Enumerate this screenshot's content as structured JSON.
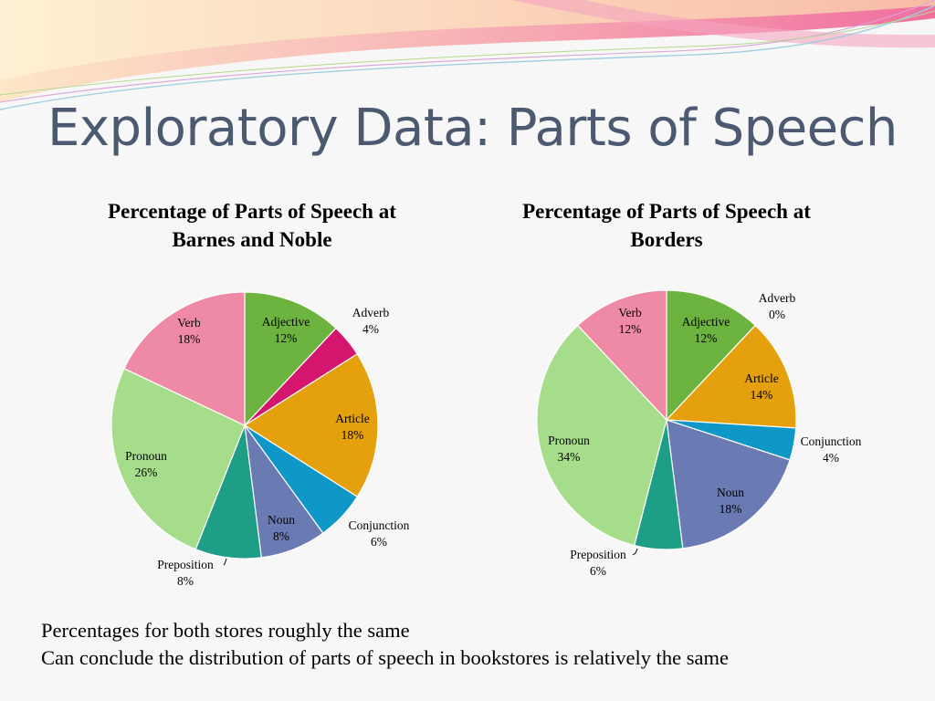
{
  "slide": {
    "title": "Exploratory Data: Parts of Speech",
    "notes": [
      "Percentages for both stores roughly the same",
      "Can conclude the distribution of parts of speech in bookstores is relatively the same"
    ]
  },
  "colors": {
    "Adjective": "#6db33f",
    "Adverb": "#d4166e",
    "Article": "#e5a00d",
    "Conjunction": "#0f97c8",
    "Noun": "#6a7ab3",
    "Preposition": "#1e9e86",
    "Pronoun": "#a6dd8a",
    "Verb": "#ee8aa6"
  },
  "chart_data": [
    {
      "type": "pie",
      "title_lines": [
        "Percentage of Parts of Speech at",
        "Barnes and Noble"
      ],
      "categories": [
        "Adjective",
        "Adverb",
        "Article",
        "Conjunction",
        "Noun",
        "Preposition",
        "Pronoun",
        "Verb"
      ],
      "values": [
        12,
        4,
        18,
        6,
        8,
        8,
        26,
        18
      ],
      "labels": [
        "12%",
        "4%",
        "18%",
        "6%",
        "8%",
        "8%",
        "26%",
        "18%"
      ],
      "legend": "none"
    },
    {
      "type": "pie",
      "title_lines": [
        "Percentage of Parts of Speech at",
        "Borders"
      ],
      "categories": [
        "Adjective",
        "Adverb",
        "Article",
        "Conjunction",
        "Noun",
        "Preposition",
        "Pronoun",
        "Verb"
      ],
      "values": [
        12,
        0,
        14,
        4,
        18,
        6,
        34,
        12
      ],
      "labels": [
        "12%",
        "0%",
        "14%",
        "4%",
        "18%",
        "6%",
        "34%",
        "12%"
      ],
      "legend": "none"
    }
  ]
}
